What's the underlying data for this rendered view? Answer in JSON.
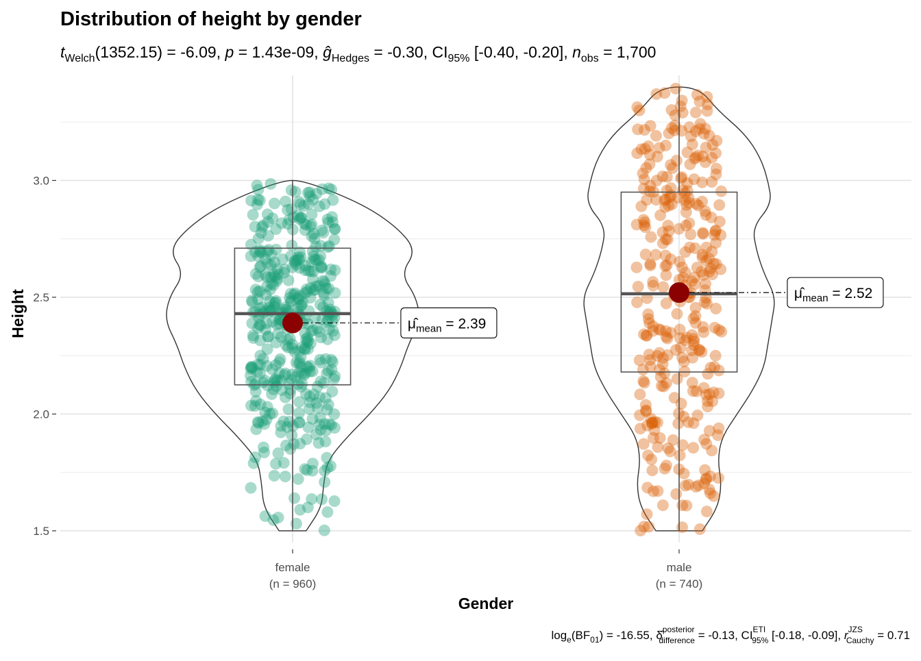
{
  "chart_data": {
    "type": "violin-box-scatter",
    "title": "Distribution of height by gender",
    "subtitle": {
      "test_label": "Welch",
      "df": "(1352.15)",
      "t_value": "-6.09",
      "p_value": "1.43e-09",
      "effect_label": "Hedges",
      "effect_value": "-0.30",
      "ci_label": "CI",
      "ci_level": "95%",
      "ci": "[-0.40, -0.20]",
      "n_label": "obs",
      "n_value": "1,700"
    },
    "caption": {
      "bf_text": "log",
      "bf_base": "e",
      "bf_name": "BF",
      "bf_sub": "01",
      "bf_value": "-16.55",
      "delta_sup": "posterior",
      "delta_sub": "difference",
      "delta_value": "-0.13",
      "ci_label": "CI",
      "ci_sup": "ETI",
      "ci_sub": "95%",
      "ci": "[-0.18, -0.09]",
      "r_sup": "JZS",
      "r_sub": "Cauchy",
      "r_value": "0.71"
    },
    "xlabel": "Gender",
    "ylabel": "Height",
    "ylim": [
      1.45,
      3.45
    ],
    "y_ticks": [
      1.5,
      2.0,
      2.5,
      3.0
    ],
    "y_tick_labels": [
      "1.5",
      "2.0",
      "2.5",
      "3.0"
    ],
    "grid": true,
    "groups": [
      {
        "name": "female",
        "n_label": "(n = 960)",
        "n": 960,
        "color": "#1b9e77",
        "box": {
          "min": 1.5,
          "q1": 2.125,
          "median": 2.43,
          "q3": 2.71,
          "max": 3.0
        },
        "mean": 2.39,
        "mean_label_sub": "mean",
        "mean_label_value": "2.39",
        "data_range": [
          1.5,
          3.0
        ],
        "violin_halfwidth": [
          [
            1.5,
            0.035
          ],
          [
            1.6,
            0.075
          ],
          [
            1.7,
            0.08
          ],
          [
            1.8,
            0.09
          ],
          [
            1.9,
            0.14
          ],
          [
            2.0,
            0.2
          ],
          [
            2.1,
            0.25
          ],
          [
            2.2,
            0.28
          ],
          [
            2.3,
            0.3
          ],
          [
            2.4,
            0.33
          ],
          [
            2.5,
            0.32
          ],
          [
            2.6,
            0.28
          ],
          [
            2.7,
            0.32
          ],
          [
            2.8,
            0.27
          ],
          [
            2.9,
            0.18
          ],
          [
            3.0,
            0.03
          ]
        ]
      },
      {
        "name": "male",
        "n_label": "(n = 740)",
        "n": 740,
        "color": "#d95f02",
        "box": {
          "min": 1.5,
          "q1": 2.18,
          "median": 2.515,
          "q3": 2.95,
          "max": 3.4
        },
        "mean": 2.52,
        "mean_label_sub": "mean",
        "mean_label_value": "2.52",
        "data_range": [
          1.5,
          3.4
        ],
        "violin_halfwidth": [
          [
            1.5,
            0.06
          ],
          [
            1.6,
            0.1
          ],
          [
            1.7,
            0.11
          ],
          [
            1.8,
            0.1
          ],
          [
            1.9,
            0.11
          ],
          [
            2.0,
            0.15
          ],
          [
            2.1,
            0.19
          ],
          [
            2.2,
            0.22
          ],
          [
            2.3,
            0.23
          ],
          [
            2.4,
            0.24
          ],
          [
            2.5,
            0.25
          ],
          [
            2.6,
            0.22
          ],
          [
            2.7,
            0.2
          ],
          [
            2.8,
            0.19
          ],
          [
            2.9,
            0.24
          ],
          [
            3.0,
            0.23
          ],
          [
            3.1,
            0.21
          ],
          [
            3.2,
            0.17
          ],
          [
            3.3,
            0.1
          ],
          [
            3.4,
            0.05
          ]
        ]
      }
    ],
    "mean_color": "#8b0000"
  }
}
